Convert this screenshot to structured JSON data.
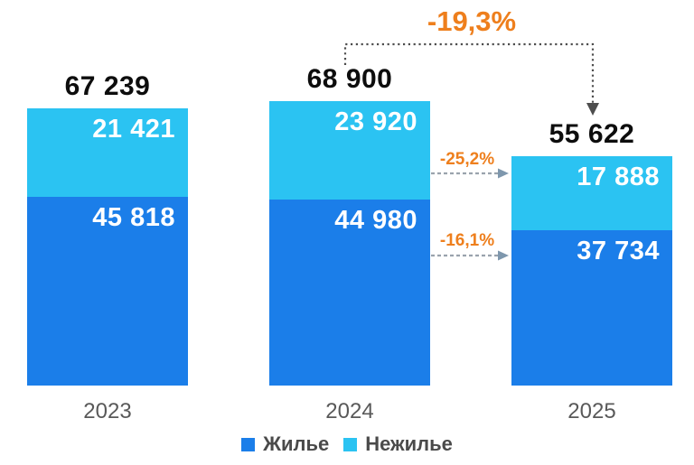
{
  "chart_data": {
    "type": "bar",
    "stacked": true,
    "title": "",
    "categories": [
      "2023",
      "2024",
      "2025"
    ],
    "series": [
      {
        "name": "Жилье",
        "color": "#1b7ee9",
        "values": [
          45818,
          44980,
          37734
        ],
        "labels": [
          "45 818",
          "44 980",
          "37 734"
        ]
      },
      {
        "name": "Нежилье",
        "color": "#2bc3f2",
        "values": [
          21421,
          23920,
          17888
        ],
        "labels": [
          "21 421",
          "23 920",
          "17 888"
        ]
      }
    ],
    "totals": [
      67239,
      68900,
      55622
    ],
    "total_labels": [
      "67 239",
      "68 900",
      "55 622"
    ],
    "annotations": {
      "total_change": {
        "label": "-19,3%",
        "from": "2024",
        "to": "2025"
      },
      "non_residential_change": {
        "label": "-25,2%",
        "from": "2024",
        "to": "2025"
      },
      "residential_change": {
        "label": "-16,1%",
        "from": "2024",
        "to": "2025"
      }
    },
    "legend": {
      "position": "bottom",
      "entries": [
        {
          "label": "Жилье",
          "color": "#1b7ee9"
        },
        {
          "label": "Нежилье",
          "color": "#2bc3f2"
        }
      ]
    },
    "colors": {
      "annotation_orange": "#ee7f1d",
      "total_text": "#0d0d0d",
      "axis_text": "#595959",
      "connector_dark": "#4d4d4d",
      "side_arrow_gray": "#9aa3ad",
      "side_arrow_head": "#7e97ad"
    },
    "grid": false,
    "value_axis_visible": false
  }
}
